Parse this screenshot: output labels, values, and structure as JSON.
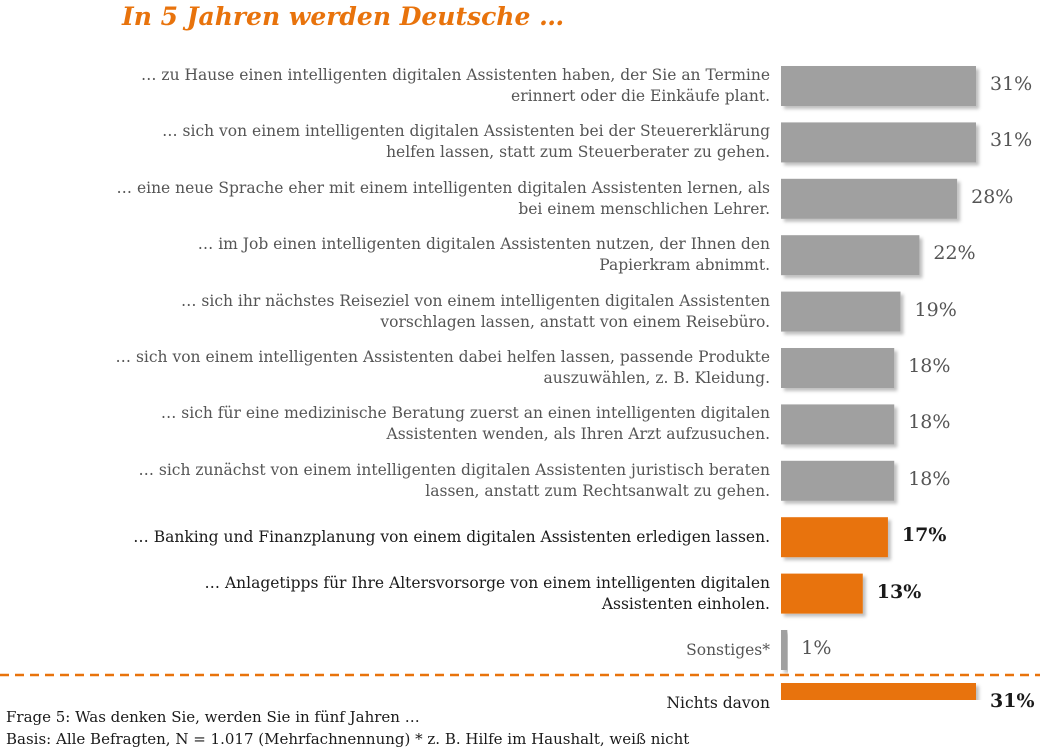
{
  "title": "In 5 Jahren werden Deutsche …",
  "footer": {
    "question": "Frage 5: Was denken Sie, werden Sie in fünf Jahren …",
    "basis": "Basis: Alle Befragten, N = 1.017 (Mehrfachnennung) * z. B. Hilfe im Haushalt, weiß nicht"
  },
  "colors": {
    "gray": "#a0a0a0",
    "orange": "#e8730c",
    "divider": "#e8730c"
  },
  "chart_data": {
    "type": "bar",
    "orientation": "horizontal",
    "unit": "%",
    "xlim": [
      0,
      31
    ],
    "categories": [
      [
        "… zu Hause einen intelligenten digitalen Assistenten haben, der Sie an Termine",
        "erinnert oder die Einkäufe plant."
      ],
      [
        "… sich von einem intelligenten digitalen Assistenten bei der Steuererklärung",
        "helfen lassen, statt zum Steuerberater zu gehen."
      ],
      [
        "… eine neue Sprache eher mit einem intelligenten digitalen Assistenten lernen, als",
        "bei einem menschlichen Lehrer."
      ],
      [
        "… im Job einen intelligenten digitalen Assistenten nutzen, der Ihnen den",
        "Papierkram abnimmt."
      ],
      [
        "… sich ihr nächstes Reiseziel von einem intelligenten digitalen Assistenten",
        "vorschlagen lassen, anstatt von einem Reisebüro."
      ],
      [
        "… sich von einem intelligenten Assistenten dabei helfen lassen, passende Produkte",
        "auszuwählen, z. B. Kleidung."
      ],
      [
        "… sich für eine medizinische Beratung zuerst an einen intelligenten digitalen",
        "Assistenten wenden, als Ihren Arzt aufzusuchen."
      ],
      [
        "… sich zunächst von einem intelligenten digitalen Assistenten juristisch beraten",
        "lassen, anstatt zum Rechtsanwalt zu gehen."
      ],
      [
        "… Banking und Finanzplanung von einem digitalen Assistenten erledigen lassen."
      ],
      [
        "… Anlagetipps für Ihre Altersvorsorge von einem intelligenten digitalen",
        "Assistenten einholen."
      ],
      [
        "Sonstiges*"
      ],
      [
        "Nichts davon"
      ]
    ],
    "values": [
      31,
      31,
      28,
      22,
      19,
      18,
      18,
      18,
      17,
      13,
      1,
      31
    ],
    "value_labels": [
      "31%",
      "31%",
      "28%",
      "22%",
      "19%",
      "18%",
      "18%",
      "18%",
      "17%",
      "13%",
      "1%",
      "31%"
    ],
    "highlight": [
      false,
      false,
      false,
      false,
      false,
      false,
      false,
      false,
      true,
      true,
      false,
      true
    ],
    "divider_before_last": true
  }
}
